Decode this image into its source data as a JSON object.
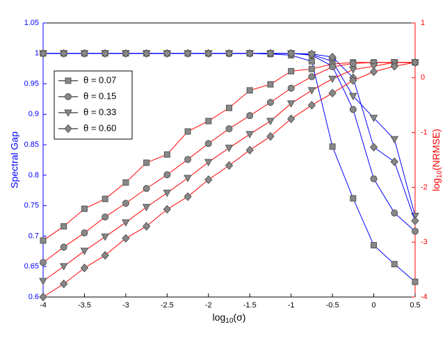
{
  "chart_data": {
    "type": "line",
    "x": [
      -4,
      -3.75,
      -3.5,
      -3.25,
      -3,
      -2.75,
      -2.5,
      -2.25,
      -2,
      -1.75,
      -1.5,
      -1.25,
      -1,
      -0.75,
      -0.5,
      -0.25,
      0,
      0.25,
      0.5
    ],
    "xlim": [
      -4,
      0.5
    ],
    "xticks": [
      -4,
      -3.5,
      -3,
      -2.5,
      -2,
      -1.5,
      -1,
      -0.5,
      0,
      0.5
    ],
    "ylim": [
      0.6,
      1.05
    ],
    "yticks": [
      0.6,
      0.65,
      0.7,
      0.75,
      0.8,
      0.85,
      0.9,
      0.95,
      1,
      1.05
    ],
    "y2lim": [
      -4,
      1
    ],
    "y2ticks": [
      -4,
      -3,
      -2,
      -1,
      0,
      1
    ],
    "ylabel": "Spectral Gap",
    "ycolor": "#0000ff",
    "y2label": {
      "text": "log",
      "sub": "10",
      "rest": "(NRMSE)"
    },
    "y2color": "#ff0000",
    "xlabel": {
      "text": "log",
      "sub": "10",
      "rest": "(σ)"
    },
    "legend": "upper left",
    "series": [
      {
        "name": "θ = 0.07",
        "marker": "square",
        "color": "#0000ff",
        "values": [
          1,
          1,
          1,
          1,
          1,
          1,
          1,
          1,
          1,
          1,
          1,
          0.999,
          0.997,
          0.987,
          0.847,
          0.762,
          0.685,
          0.654,
          0.625
        ]
      },
      {
        "name": "θ = 0.15",
        "marker": "circle",
        "color": "#0000ff",
        "values": [
          1,
          1,
          1,
          1,
          1,
          1,
          1,
          1,
          1,
          1,
          1,
          1,
          1,
          0.997,
          0.979,
          0.908,
          0.794,
          0.738,
          0.708
        ]
      },
      {
        "name": "θ = 0.33",
        "marker": "triangle",
        "color": "#0000ff",
        "values": [
          1,
          1,
          1,
          1,
          1,
          1,
          1,
          1,
          1,
          1,
          1,
          1,
          1,
          0.998,
          0.987,
          0.93,
          0.894,
          0.859,
          0.733
        ]
      },
      {
        "name": "θ = 0.60",
        "marker": "diamond",
        "color": "#0000ff",
        "values": [
          1,
          1,
          1,
          1,
          1,
          1,
          1,
          1,
          1,
          1,
          1,
          1,
          1,
          0.999,
          0.994,
          0.96,
          0.846,
          0.822,
          0.725
        ]
      },
      {
        "marker": "square",
        "color": "#ff0000",
        "axis": "y2",
        "values": [
          -2.97,
          -2.71,
          -2.39,
          -2.21,
          -1.91,
          -1.55,
          -1.4,
          -0.98,
          -0.79,
          -0.55,
          -0.23,
          -0.12,
          0.12,
          0.16,
          0.25,
          0.28,
          0.28,
          0.28,
          0.28
        ]
      },
      {
        "marker": "circle",
        "color": "#ff0000",
        "axis": "y2",
        "values": [
          -3.37,
          -3.09,
          -2.83,
          -2.54,
          -2.29,
          -2.02,
          -1.77,
          -1.49,
          -1.2,
          -0.93,
          -0.69,
          -0.45,
          -0.19,
          0.02,
          0.2,
          0.26,
          0.28,
          0.28,
          0.28
        ]
      },
      {
        "marker": "triangle",
        "color": "#ff0000",
        "axis": "y2",
        "values": [
          -3.71,
          -3.44,
          -3.16,
          -2.9,
          -2.64,
          -2.36,
          -2.1,
          -1.83,
          -1.54,
          -1.28,
          -1.03,
          -0.79,
          -0.47,
          -0.23,
          -0.02,
          0.15,
          0.21,
          0.28,
          0.28
        ]
      },
      {
        "marker": "diamond",
        "color": "#ff0000",
        "axis": "y2",
        "values": [
          -4,
          -3.76,
          -3.47,
          -3.24,
          -2.93,
          -2.71,
          -2.4,
          -2.17,
          -1.86,
          -1.6,
          -1.32,
          -1.07,
          -0.75,
          -0.5,
          -0.28,
          -0.05,
          0.11,
          0.21,
          0.28
        ]
      }
    ]
  }
}
